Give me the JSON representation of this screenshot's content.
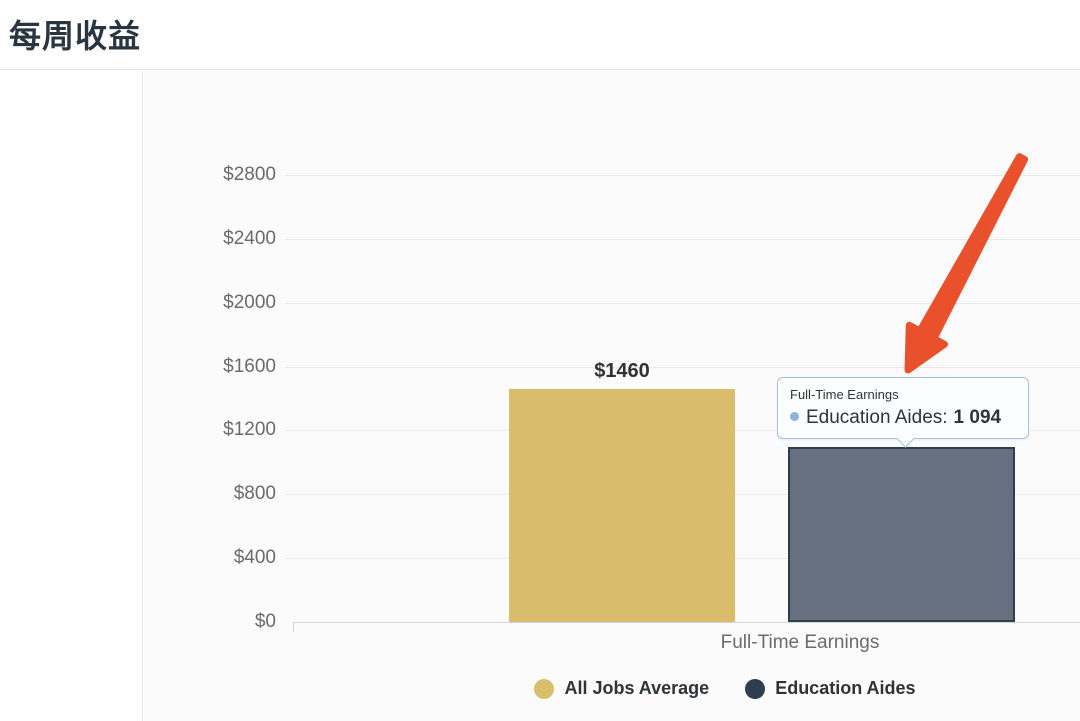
{
  "page": {
    "title": "每周收益"
  },
  "chart_data": {
    "type": "bar",
    "title": "每周收益",
    "categories": [
      "Full-Time Earnings"
    ],
    "series": [
      {
        "name": "All Jobs Average",
        "values": [
          1460
        ],
        "color": "#d9bd6c",
        "data_label": "$1460"
      },
      {
        "name": "Education Aides",
        "values": [
          1094
        ],
        "color": "#66707f",
        "border_color": "#2e3e50"
      }
    ],
    "xlabel": "Full-Time Earnings",
    "ylabel": "",
    "ylim": [
      0,
      2800
    ],
    "yticks": [
      0,
      400,
      800,
      1200,
      1600,
      2000,
      2400,
      2800
    ],
    "ytick_prefix": "$",
    "grid": true,
    "legend_position": "bottom-center"
  },
  "legend": {
    "items": [
      {
        "label": "All Jobs Average",
        "color": "#d9be6e"
      },
      {
        "label": "Education Aides",
        "color": "#2d3e50"
      }
    ]
  },
  "tooltip": {
    "header": "Full-Time Earnings",
    "series_label": "Education Aides:",
    "value": "1 094",
    "bullet_color": "#8cb2dc",
    "border_color": "#a6c1de"
  },
  "annotation_arrow": {
    "color": "#e8512b"
  }
}
